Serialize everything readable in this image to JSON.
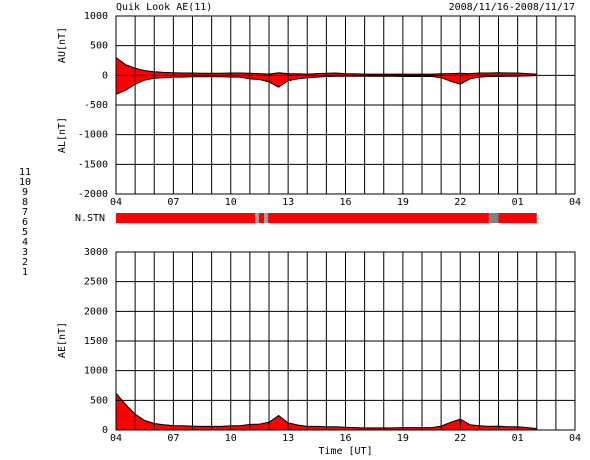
{
  "header": {
    "title": "Quik Look AE(11)",
    "date": "2008/11/16-2008/11/17"
  },
  "stations": {
    "label": "N.STN",
    "items": [
      {
        "name": "11",
        "color": "#40d0d0"
      },
      {
        "name": "10",
        "color": "#e020e0"
      },
      {
        "name": "9",
        "color": "#2020c0"
      },
      {
        "name": "8",
        "color": "#e0e040"
      },
      {
        "name": "7",
        "color": "#a0d040"
      },
      {
        "name": "6",
        "color": "#ff2020"
      },
      {
        "name": "5",
        "color": "#c8c8c8"
      },
      {
        "name": "4",
        "color": "#909090"
      },
      {
        "name": "3",
        "color": "#209090"
      },
      {
        "name": "2",
        "color": "#a020a0"
      },
      {
        "name": "1",
        "color": "#2020e0"
      }
    ],
    "segments": [
      {
        "start": 0,
        "end": 7.27,
        "color": "#ff0000"
      },
      {
        "start": 7.27,
        "end": 7.47,
        "color": "#a0a0a0"
      },
      {
        "start": 7.47,
        "end": 7.74,
        "color": "#ff0000"
      },
      {
        "start": 7.74,
        "end": 7.95,
        "color": "#a0a0a0"
      },
      {
        "start": 7.95,
        "end": 19.5,
        "color": "#ff0000"
      },
      {
        "start": 19.5,
        "end": 20.0,
        "color": "#808080"
      },
      {
        "start": 20.0,
        "end": 22.0,
        "color": "#ff0000"
      }
    ]
  },
  "chart_data": [
    {
      "type": "band-area",
      "x_label": "",
      "fill": "#ff0000",
      "x": [
        0,
        0.5,
        1,
        1.5,
        2,
        2.5,
        3,
        3.5,
        4,
        4.5,
        5,
        5.5,
        6,
        6.5,
        7,
        7.5,
        8,
        8.5,
        9,
        9.5,
        10,
        10.5,
        11,
        11.5,
        12,
        12.5,
        13,
        13.5,
        14,
        14.5,
        15,
        15.5,
        16,
        16.5,
        17,
        17.5,
        18,
        18.5,
        19,
        19.5,
        20,
        20.5,
        21,
        21.5,
        22
      ],
      "series": [
        {
          "name": "AU[nT]",
          "color": "#000000",
          "values": [
            300,
            180,
            120,
            80,
            60,
            50,
            45,
            40,
            40,
            35,
            35,
            35,
            40,
            40,
            35,
            30,
            20,
            45,
            30,
            25,
            20,
            30,
            35,
            40,
            30,
            25,
            20,
            20,
            20,
            20,
            20,
            20,
            20,
            20,
            25,
            30,
            35,
            30,
            40,
            40,
            45,
            40,
            40,
            30,
            20
          ]
        },
        {
          "name": "AL[nT]",
          "color": "#000000",
          "values": [
            -320,
            -250,
            -150,
            -80,
            -50,
            -40,
            -30,
            -30,
            -25,
            -25,
            -25,
            -25,
            -30,
            -30,
            -60,
            -70,
            -110,
            -200,
            -90,
            -60,
            -40,
            -30,
            -20,
            -15,
            -15,
            -15,
            -15,
            -15,
            -15,
            -15,
            -20,
            -20,
            -20,
            -20,
            -40,
            -100,
            -150,
            -60,
            -30,
            -20,
            -20,
            -15,
            -15,
            -10,
            -5
          ]
        }
      ],
      "xlim": [
        0,
        24
      ],
      "xticks": [
        {
          "value": 0,
          "label": "04"
        },
        {
          "value": 3,
          "label": "07"
        },
        {
          "value": 6,
          "label": "10"
        },
        {
          "value": 9,
          "label": "13"
        },
        {
          "value": 12,
          "label": "16"
        },
        {
          "value": 15,
          "label": "19"
        },
        {
          "value": 18,
          "label": "22"
        },
        {
          "value": 21,
          "label": "01"
        },
        {
          "value": 24,
          "label": "04"
        }
      ],
      "xgrid": [
        1,
        2,
        4,
        5,
        7,
        8,
        10,
        11,
        13,
        14,
        16,
        17,
        19,
        20,
        22,
        23
      ],
      "ylim": [
        -2000,
        1000
      ],
      "yticks": [
        -2000,
        -1500,
        -1000,
        -500,
        0,
        500,
        1000
      ],
      "grid": true
    },
    {
      "type": "area",
      "x_label": "Time [UT]",
      "fill": "#ff0000",
      "x": [
        0,
        0.5,
        1,
        1.5,
        2,
        2.5,
        3,
        3.5,
        4,
        4.5,
        5,
        5.5,
        6,
        6.5,
        7,
        7.5,
        8,
        8.5,
        9,
        9.5,
        10,
        10.5,
        11,
        11.5,
        12,
        12.5,
        13,
        13.5,
        14,
        14.5,
        15,
        15.5,
        16,
        16.5,
        17,
        17.5,
        18,
        18.5,
        19,
        19.5,
        20,
        20.5,
        21,
        21.5,
        22
      ],
      "series": [
        {
          "name": "AE[nT]",
          "color": "#000000",
          "values": [
            620,
            430,
            270,
            160,
            110,
            90,
            75,
            70,
            65,
            60,
            60,
            60,
            70,
            70,
            95,
            100,
            130,
            245,
            120,
            85,
            60,
            60,
            55,
            55,
            45,
            40,
            35,
            35,
            35,
            35,
            40,
            40,
            40,
            40,
            65,
            130,
            185,
            90,
            70,
            60,
            65,
            55,
            55,
            40,
            25
          ]
        }
      ],
      "xlim": [
        0,
        24
      ],
      "xticks": [
        {
          "value": 0,
          "label": "04"
        },
        {
          "value": 3,
          "label": "07"
        },
        {
          "value": 6,
          "label": "10"
        },
        {
          "value": 9,
          "label": "13"
        },
        {
          "value": 12,
          "label": "16"
        },
        {
          "value": 15,
          "label": "19"
        },
        {
          "value": 18,
          "label": "22"
        },
        {
          "value": 21,
          "label": "01"
        },
        {
          "value": 24,
          "label": "04"
        }
      ],
      "xgrid": [
        1,
        2,
        4,
        5,
        7,
        8,
        10,
        11,
        13,
        14,
        16,
        17,
        19,
        20,
        22,
        23
      ],
      "ylim": [
        0,
        3000
      ],
      "yticks": [
        0,
        500,
        1000,
        1500,
        2000,
        2500,
        3000
      ],
      "grid": true
    }
  ]
}
